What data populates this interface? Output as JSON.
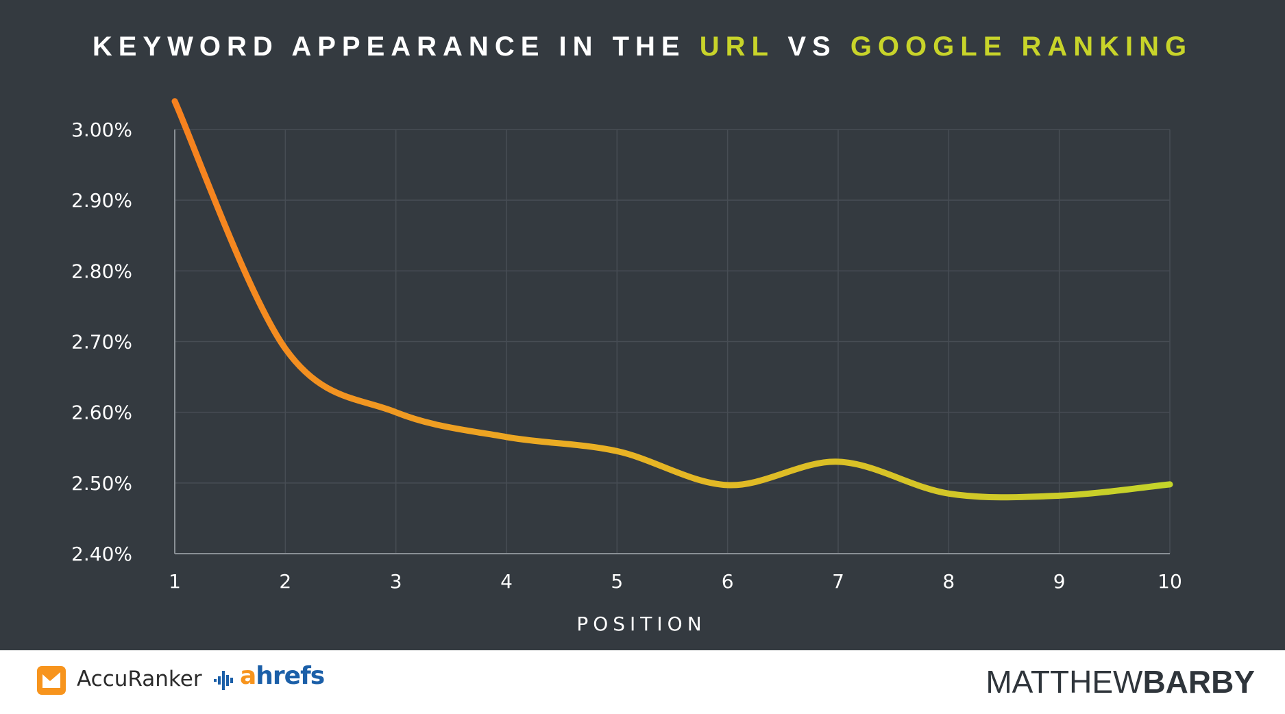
{
  "title": {
    "part1": "KEYWORD APPEARANCE IN THE ",
    "highlight1": "URL",
    "part2": " VS ",
    "highlight2": "GOOGLE RANKING"
  },
  "colors": {
    "background": "#343a40",
    "highlight": "#c8d42a",
    "line_start": "#f7811f",
    "line_mid": "#e9b324",
    "line_end": "#c4d42a",
    "grid": "#474d54"
  },
  "chart_data": {
    "type": "line",
    "title": "KEYWORD APPEARANCE IN THE URL VS GOOGLE RANKING",
    "xlabel": "POSITION",
    "ylabel": "",
    "x": [
      1,
      2,
      3,
      4,
      5,
      6,
      7,
      8,
      9,
      10
    ],
    "series": [
      {
        "values": [
          3.04,
          2.69,
          2.6,
          2.565,
          2.545,
          2.497,
          2.53,
          2.485,
          2.482,
          2.498
        ]
      }
    ],
    "ylim": [
      2.4,
      3.0
    ],
    "yticks": [
      "3.00%",
      "2.90%",
      "2.80%",
      "2.70%",
      "2.60%",
      "2.50%",
      "2.40%"
    ],
    "xticks": [
      "1",
      "2",
      "3",
      "4",
      "5",
      "6",
      "7",
      "8",
      "9",
      "10"
    ],
    "grid": true,
    "legend": "none"
  },
  "footer": {
    "accuranker": "AccuRanker",
    "ahrefs_a": "a",
    "ahrefs_rest": "hrefs",
    "brand_thin": "MATTHEW",
    "brand_bold": "BARBY"
  }
}
